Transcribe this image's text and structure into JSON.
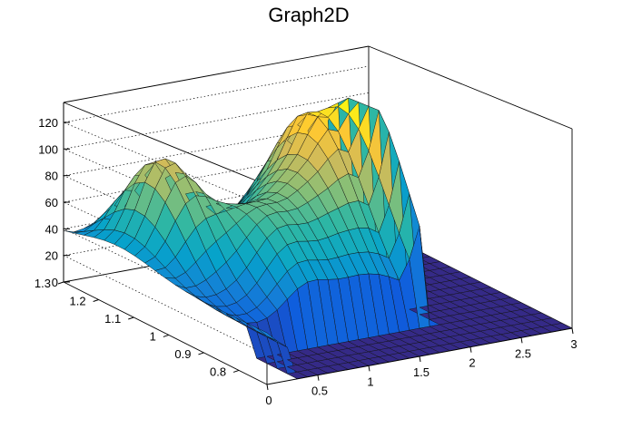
{
  "chart_data": {
    "type": "surface",
    "title": "Graph2D",
    "x_axis": {
      "range": [
        0,
        3
      ],
      "ticks": [
        "0",
        "0.5",
        "1",
        "1.5",
        "2",
        "2.5",
        "3"
      ]
    },
    "y_axis": {
      "range": [
        0.72,
        1.3
      ],
      "ticks": [
        "0.8",
        "0.9",
        "1",
        "1.1",
        "1.2",
        "1.3"
      ]
    },
    "z_axis": {
      "range": [
        0,
        135
      ],
      "ticks": [
        "0",
        "20",
        "40",
        "60",
        "80",
        "100",
        "120"
      ]
    },
    "grid": true,
    "colormap": [
      "#352a87",
      "#0f5cdd",
      "#1481d6",
      "#06a4ca",
      "#2eb7a4",
      "#87bf77",
      "#d1bb59",
      "#fec832",
      "#f9fb0e"
    ],
    "surface_peaks": [
      {
        "x": 0.45,
        "y": 1.15,
        "z": 90
      },
      {
        "x": 1.2,
        "y": 1.05,
        "z": 95
      },
      {
        "x": 1.8,
        "y": 1.1,
        "z": 97
      },
      {
        "x": 2.0,
        "y": 1.0,
        "z": 125
      }
    ]
  }
}
